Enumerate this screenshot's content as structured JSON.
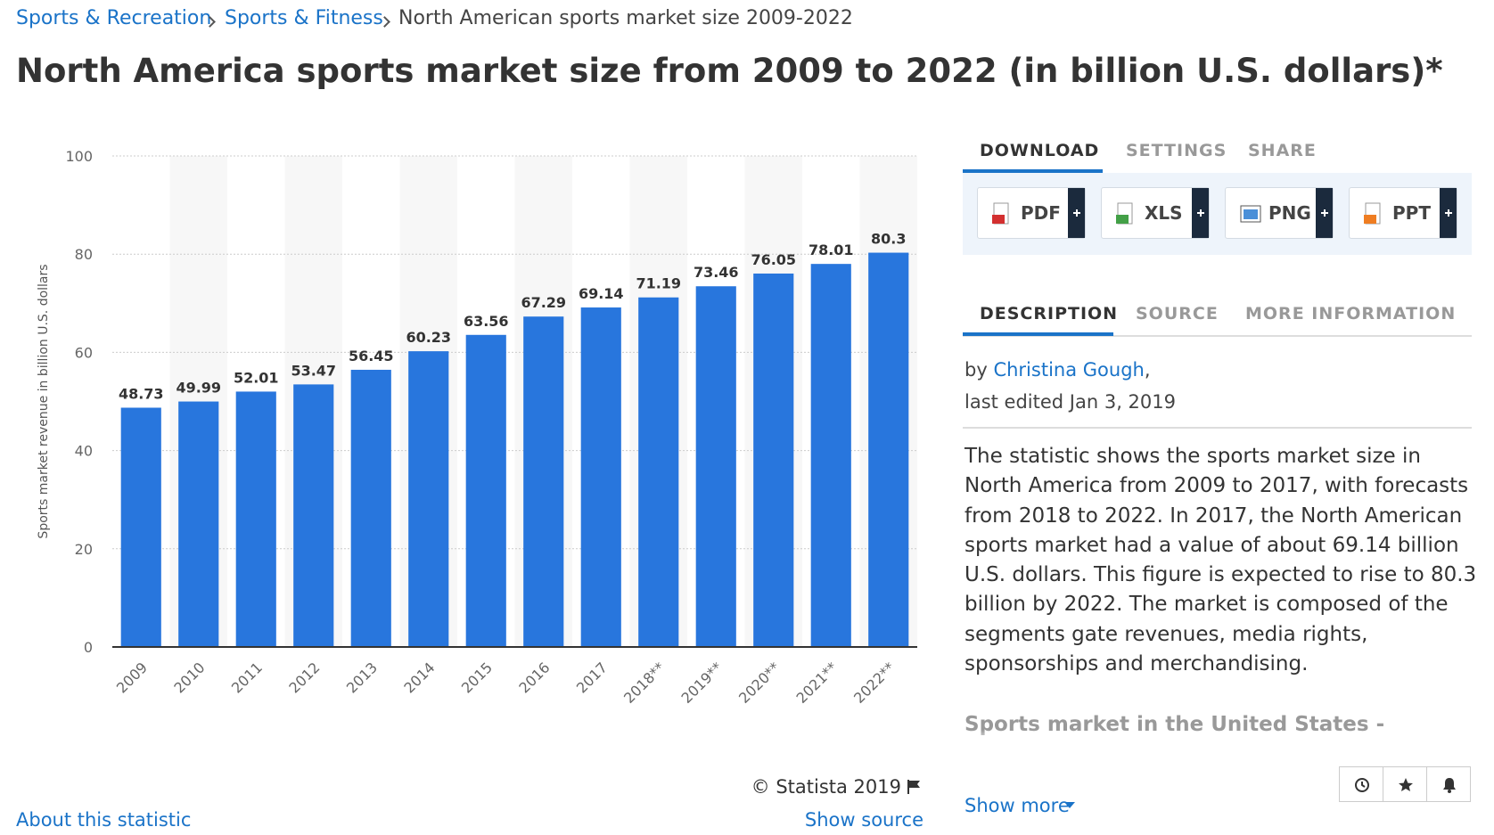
{
  "breadcrumb": [
    "Sports & Recreation",
    "Sports & Fitness",
    "North American sports market size 2009-2022"
  ],
  "chart_data": {
    "type": "bar",
    "title": "North America sports market size from 2009 to 2022 (in billion U.S. dollars)*",
    "y_label": "Sports market revenue in billion U.S. dollars",
    "categories": [
      "2009",
      "2010",
      "2011",
      "2012",
      "2013",
      "2014",
      "2015",
      "2016",
      "2017",
      "2018**",
      "2019**",
      "2020**",
      "2021**",
      "2022**"
    ],
    "values": [
      48.73,
      49.99,
      52.01,
      53.47,
      56.45,
      60.23,
      63.56,
      67.29,
      69.14,
      71.19,
      73.46,
      76.05,
      78.01,
      80.3
    ],
    "color": "#2876dd",
    "ylim": [
      0,
      100
    ],
    "yticks": [
      0,
      20,
      40,
      60,
      80,
      100
    ],
    "grid": true
  },
  "credit": "© Statista 2019",
  "links": {
    "show_source": "Show source",
    "about": "About this statistic"
  },
  "tabs": [
    "DOWNLOAD",
    "SETTINGS",
    "SHARE"
  ],
  "downloads": [
    "PDF",
    "XLS",
    "PNG",
    "PPT"
  ],
  "info_tabs": [
    "DESCRIPTION",
    "SOURCE",
    "MORE INFORMATION"
  ],
  "author": {
    "prefix": "by",
    "name": "Christina Gough",
    "suffix": ","
  },
  "last_edited": "last edited Jan 3, 2019",
  "description": "The statistic shows the sports market size in North America from 2009 to 2017, with forecasts from 2018 to 2022. In 2017, the North American sports market had a value of about 69.14 billion U.S. dollars. This figure is expected to rise to 80.3 billion by 2022. The market is composed of the segments gate revenues, media rights, sponsorships and merchandising.",
  "additional_heading": "Sports market in the United States - additional information",
  "show_more": "Show more"
}
